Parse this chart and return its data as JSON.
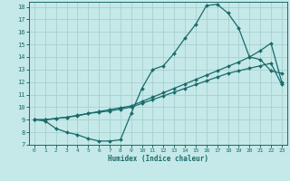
{
  "xlabel": "Humidex (Indice chaleur)",
  "bg_color": "#c5e8e8",
  "grid_color": "#a8d0d0",
  "line_color": "#1a6b6b",
  "xlim": [
    -0.5,
    23.5
  ],
  "ylim": [
    7,
    18.4
  ],
  "xticks": [
    0,
    1,
    2,
    3,
    4,
    5,
    6,
    7,
    8,
    9,
    10,
    11,
    12,
    13,
    14,
    15,
    16,
    17,
    18,
    19,
    20,
    21,
    22,
    23
  ],
  "yticks": [
    7,
    8,
    9,
    10,
    11,
    12,
    13,
    14,
    15,
    16,
    17,
    18
  ],
  "line1_x": [
    0,
    1,
    2,
    3,
    4,
    5,
    6,
    7,
    8,
    9,
    10,
    11,
    12,
    13,
    14,
    15,
    16,
    17,
    18,
    19,
    20,
    21,
    22,
    23
  ],
  "line1_y": [
    9.0,
    8.9,
    8.3,
    8.0,
    7.8,
    7.5,
    7.3,
    7.3,
    7.4,
    9.5,
    11.5,
    13.0,
    13.3,
    14.3,
    15.5,
    16.6,
    18.1,
    18.2,
    17.5,
    16.3,
    14.0,
    13.8,
    12.9,
    12.7
  ],
  "line2_x": [
    0,
    1,
    2,
    3,
    4,
    5,
    6,
    7,
    8,
    9,
    10,
    11,
    12,
    13,
    14,
    15,
    16,
    17,
    18,
    19,
    20,
    21,
    22,
    23
  ],
  "line2_y": [
    9.0,
    9.0,
    9.1,
    9.2,
    9.3,
    9.5,
    9.6,
    9.7,
    9.85,
    10.0,
    10.3,
    10.6,
    10.9,
    11.2,
    11.5,
    11.8,
    12.1,
    12.4,
    12.7,
    12.9,
    13.1,
    13.3,
    13.5,
    11.8
  ],
  "line3_x": [
    0,
    1,
    2,
    3,
    4,
    5,
    6,
    7,
    8,
    9,
    10,
    11,
    12,
    13,
    14,
    15,
    16,
    17,
    18,
    19,
    20,
    21,
    22,
    23
  ],
  "line3_y": [
    9.0,
    9.0,
    9.1,
    9.2,
    9.35,
    9.5,
    9.65,
    9.8,
    9.95,
    10.1,
    10.45,
    10.8,
    11.15,
    11.5,
    11.85,
    12.2,
    12.55,
    12.9,
    13.25,
    13.6,
    14.0,
    14.5,
    15.1,
    12.0
  ]
}
